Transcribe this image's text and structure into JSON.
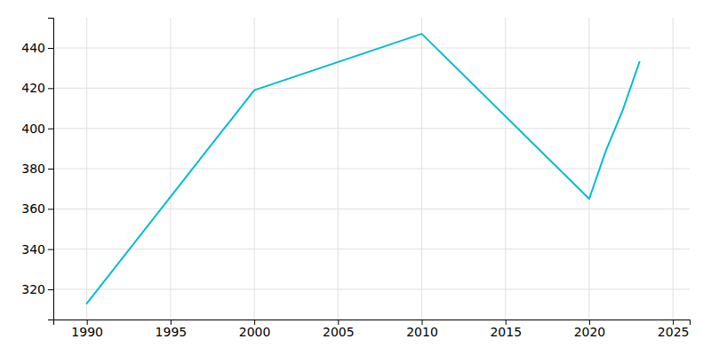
{
  "chart_data": {
    "type": "line",
    "x": [
      1990,
      2000,
      2010,
      2020,
      2021,
      2022,
      2023
    ],
    "values": [
      313,
      419,
      447,
      365,
      389,
      409,
      433
    ],
    "color": "#00bcd4",
    "xlim": [
      1988,
      2026
    ],
    "ylim": [
      305,
      455
    ],
    "xticks": [
      1990,
      1995,
      2000,
      2005,
      2010,
      2015,
      2020,
      2025
    ],
    "yticks": [
      320,
      340,
      360,
      380,
      400,
      420,
      440
    ],
    "grid": true
  }
}
